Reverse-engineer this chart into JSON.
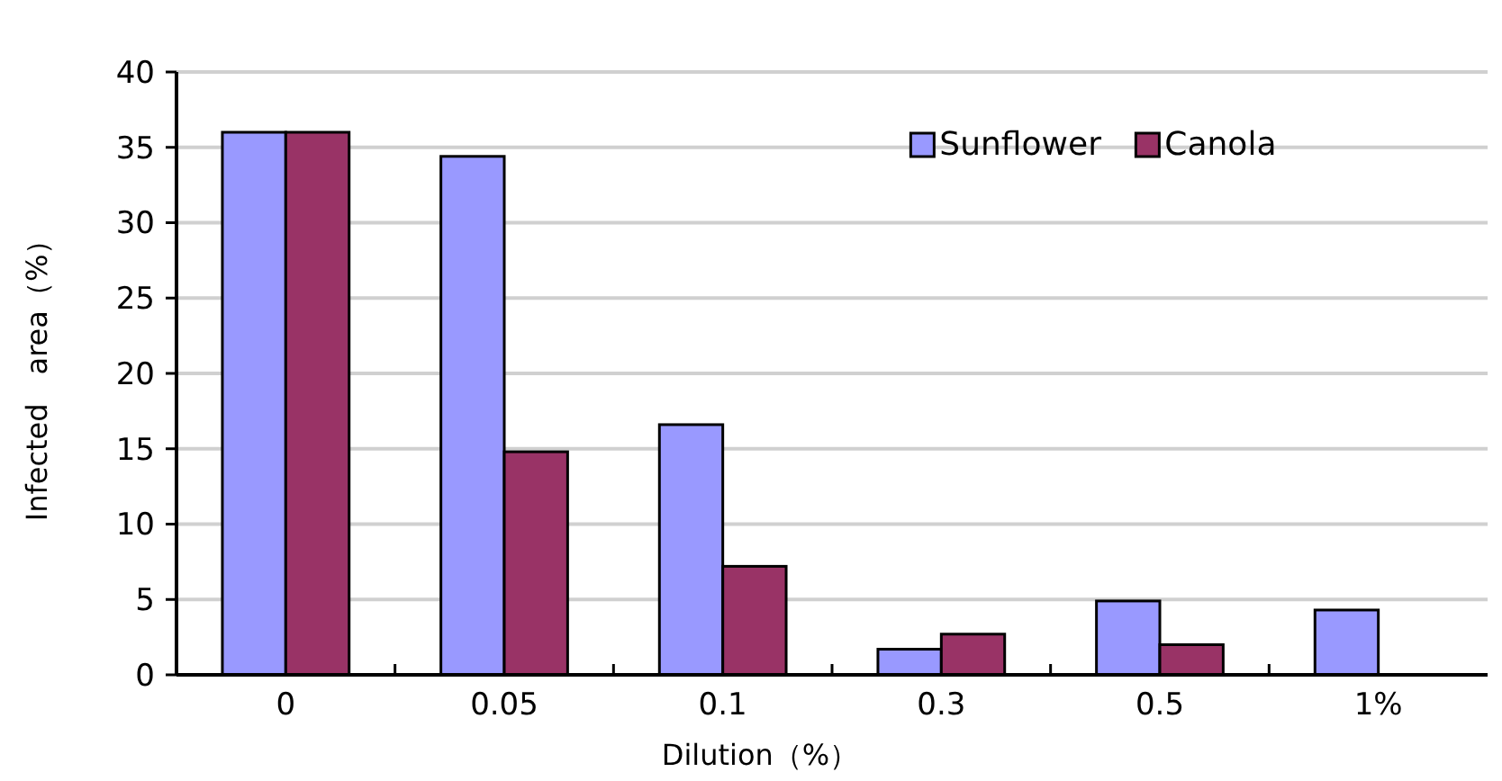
{
  "chart_data": {
    "type": "bar",
    "xlabel": "Dilution（%）",
    "ylabel": "Infected　area（%）",
    "categories": [
      "0",
      "0.05",
      "0.1",
      "0.3",
      "0.5",
      "1%"
    ],
    "series": [
      {
        "name": "Sunflower",
        "color": "#9999ff",
        "values": [
          36,
          34.4,
          16.6,
          1.7,
          4.9,
          4.3
        ]
      },
      {
        "name": "Canola",
        "color": "#993366",
        "values": [
          36,
          14.8,
          7.2,
          2.7,
          2.0,
          null
        ]
      }
    ],
    "ylim": [
      0,
      40
    ],
    "yticks": [
      0,
      5,
      10,
      15,
      20,
      25,
      30,
      35,
      40
    ],
    "grid": "y",
    "legend": "top right"
  }
}
